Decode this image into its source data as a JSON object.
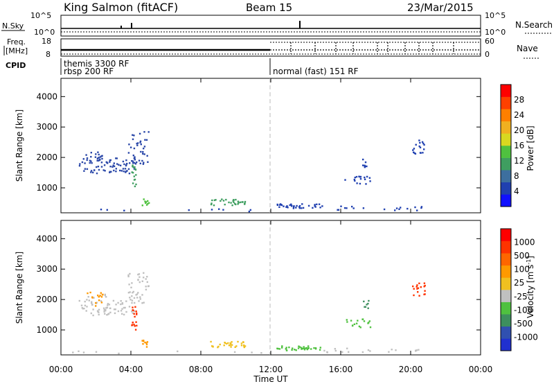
{
  "header": {
    "station": "King Salmon (fitACF)",
    "beam": "Beam 15",
    "date": "23/Mar/2015"
  },
  "aux_panels": {
    "nsky_label": "N.Sky",
    "nsearch_label": "N.Search",
    "nsky_ticks": [
      "10^5",
      "10^0"
    ],
    "nsearch_ticks": [
      "10^5",
      "10^0"
    ],
    "freq_label_1": "Freq.",
    "freq_label_2": "[MHz]",
    "freq_ticks": [
      "18",
      "8"
    ],
    "nave_label": "Nave",
    "nave_ticks": [
      "60",
      "0"
    ],
    "cpid_label": "CPID",
    "cpid_entries": [
      {
        "text": "themis 3300 RF",
        "start_hour": 0.2
      },
      {
        "text": "rbsp 200 RF",
        "start_hour": 0.2
      },
      {
        "text": "normal (fast) 151 RF",
        "start_hour": 12.0
      }
    ]
  },
  "chart_data": [
    {
      "type": "heatmap",
      "panel": "power",
      "ylabel": "Slant Range [km]",
      "xlabel": "",
      "ylim": [
        180,
        4600
      ],
      "yticks": [
        1000,
        2000,
        3000,
        4000
      ],
      "xlim": [
        0,
        24
      ],
      "colorbar_label": "Power [dB]",
      "colorbar_ticks": [
        "4",
        "8",
        "12",
        "16",
        "20",
        "24",
        "28"
      ],
      "colorbar_colors": [
        "#1010ff",
        "#2040b0",
        "#3d6f9e",
        "#3f9e60",
        "#4fc13f",
        "#d8d820",
        "#f0b020",
        "#ff7f00",
        "#ff4000",
        "#ff0000"
      ],
      "clusters": [
        {
          "t0": 1.0,
          "t1": 2.6,
          "r0": 1500,
          "r1": 2200,
          "density": 0.35,
          "color": "#2a47a8"
        },
        {
          "t0": 2.6,
          "t1": 4.2,
          "r0": 1500,
          "r1": 2000,
          "density": 0.4,
          "color": "#2a47a8"
        },
        {
          "t0": 3.8,
          "t1": 5.0,
          "r0": 1800,
          "r1": 2900,
          "density": 0.25,
          "color": "#2a47a8"
        },
        {
          "t0": 4.0,
          "t1": 4.3,
          "r0": 1000,
          "r1": 1800,
          "density": 0.5,
          "color": "#3f9e60"
        },
        {
          "t0": 4.6,
          "t1": 5.0,
          "r0": 450,
          "r1": 700,
          "density": 0.7,
          "color": "#4fc13f"
        },
        {
          "t0": 8.5,
          "t1": 10.5,
          "r0": 450,
          "r1": 650,
          "density": 0.6,
          "color": "#3f9e60"
        },
        {
          "t0": 12.3,
          "t1": 15.0,
          "r0": 350,
          "r1": 500,
          "density": 0.7,
          "color": "#2040b0"
        },
        {
          "t0": 15.0,
          "t1": 20.8,
          "r0": 280,
          "r1": 420,
          "density": 0.18,
          "color": "#2040b0"
        },
        {
          "t0": 16.2,
          "t1": 17.7,
          "r0": 1100,
          "r1": 1400,
          "density": 0.3,
          "color": "#2040b0"
        },
        {
          "t0": 17.2,
          "t1": 17.6,
          "r0": 1700,
          "r1": 2000,
          "density": 0.5,
          "color": "#2040b0"
        },
        {
          "t0": 20.0,
          "t1": 20.8,
          "r0": 2100,
          "r1": 2600,
          "density": 0.35,
          "color": "#2040b0"
        },
        {
          "t0": 0.3,
          "t1": 12.0,
          "r0": 250,
          "r1": 330,
          "density": 0.08,
          "color": "#2040b0"
        }
      ]
    },
    {
      "type": "heatmap",
      "panel": "velocity",
      "ylabel": "Slant Range [km]",
      "xlabel": "Time UT",
      "ylim": [
        180,
        4600
      ],
      "yticks": [
        1000,
        2000,
        3000,
        4000
      ],
      "xlim": [
        0,
        24
      ],
      "xticks": [
        "00:00",
        "04:00",
        "08:00",
        "12:00",
        "16:00",
        "20:00",
        "00:00"
      ],
      "colorbar_label": "Velocity [m s^-1]",
      "colorbar_ticks": [
        "1000",
        "500",
        "100",
        "25",
        "-25",
        "-100",
        "-500",
        "-1000"
      ],
      "colorbar_colors": [
        "#2030d0",
        "#3050b0",
        "#3d8f5e",
        "#4fc13f",
        "#c0c0c0",
        "#f0c020",
        "#ff9900",
        "#ff6600",
        "#ff3300",
        "#ff0000"
      ],
      "clusters": [
        {
          "t0": 1.0,
          "t1": 2.6,
          "r0": 1500,
          "r1": 2200,
          "density": 0.3,
          "color": "#c0c0c0"
        },
        {
          "t0": 1.4,
          "t1": 2.4,
          "r0": 1800,
          "r1": 2300,
          "density": 0.25,
          "color": "#ff9900"
        },
        {
          "t0": 2.6,
          "t1": 4.2,
          "r0": 1500,
          "r1": 2000,
          "density": 0.35,
          "color": "#c0c0c0"
        },
        {
          "t0": 3.8,
          "t1": 5.0,
          "r0": 1800,
          "r1": 2900,
          "density": 0.25,
          "color": "#c0c0c0"
        },
        {
          "t0": 4.0,
          "t1": 4.3,
          "r0": 1000,
          "r1": 1800,
          "density": 0.6,
          "color": "#ff3300"
        },
        {
          "t0": 4.6,
          "t1": 5.0,
          "r0": 450,
          "r1": 700,
          "density": 0.7,
          "color": "#ff9900"
        },
        {
          "t0": 8.5,
          "t1": 10.5,
          "r0": 450,
          "r1": 650,
          "density": 0.6,
          "color": "#f0c020"
        },
        {
          "t0": 12.3,
          "t1": 15.0,
          "r0": 350,
          "r1": 500,
          "density": 0.7,
          "color": "#4fc13f"
        },
        {
          "t0": 15.0,
          "t1": 20.8,
          "r0": 280,
          "r1": 420,
          "density": 0.18,
          "color": "#c0c0c0"
        },
        {
          "t0": 16.2,
          "t1": 17.7,
          "r0": 1100,
          "r1": 1400,
          "density": 0.3,
          "color": "#4fc13f"
        },
        {
          "t0": 17.2,
          "t1": 17.6,
          "r0": 1700,
          "r1": 2000,
          "density": 0.5,
          "color": "#3d8f5e"
        },
        {
          "t0": 20.0,
          "t1": 20.8,
          "r0": 2100,
          "r1": 2600,
          "density": 0.35,
          "color": "#ff3300"
        },
        {
          "t0": 0.3,
          "t1": 12.0,
          "r0": 250,
          "r1": 330,
          "density": 0.08,
          "color": "#c0c0c0"
        }
      ]
    }
  ]
}
